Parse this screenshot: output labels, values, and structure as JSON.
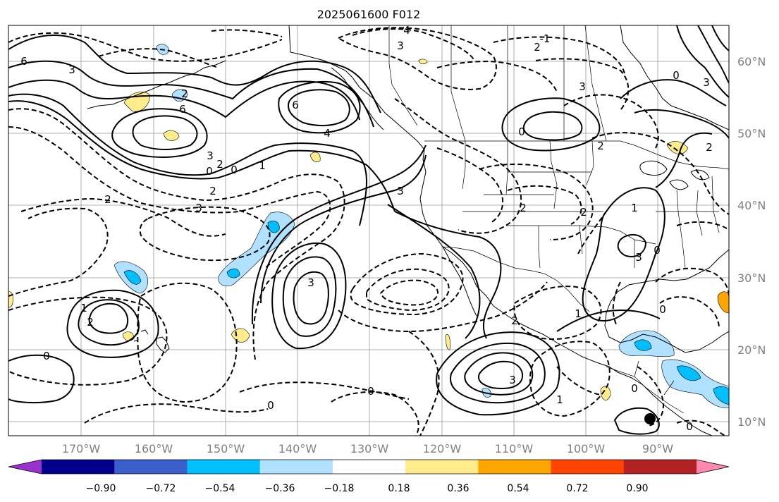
{
  "title": "2025061600 F012",
  "lat_labels": [
    "60°N",
    "50°N",
    "40°N",
    "30°N",
    "20°N",
    "10°N"
  ],
  "lon_labels": [
    "170°W",
    "160°W",
    "150°W",
    "140°W",
    "130°W",
    "120°W",
    "110°W",
    "100°W",
    "90°W"
  ],
  "colorbar": {
    "colors": [
      "#9932cc",
      "#00008b",
      "#3a5fcd",
      "#00bfff",
      "#b0e2ff",
      "#ffffff",
      "#ffec8b",
      "#ffa500",
      "#ff4500",
      "#b22222",
      "#ff88b0"
    ],
    "ticks": [
      "−0.90",
      "−0.72",
      "−0.54",
      "−0.36",
      "−0.18",
      "0.18",
      "0.36",
      "0.54",
      "0.72",
      "0.90"
    ]
  },
  "contour_labels": [
    "4",
    "3",
    "-1",
    "2",
    "6",
    "3",
    "6",
    "2",
    "6",
    "4",
    "3",
    "0",
    "2",
    "0",
    "1",
    "2",
    "3",
    "2",
    "0",
    "2",
    "3",
    "3",
    "1",
    "2",
    "0",
    "3",
    "0",
    "3",
    "0",
    "2",
    "1",
    "3",
    "2",
    "1",
    "0",
    "1",
    "0",
    "2",
    "2",
    "3",
    "0",
    "0",
    "0"
  ]
}
